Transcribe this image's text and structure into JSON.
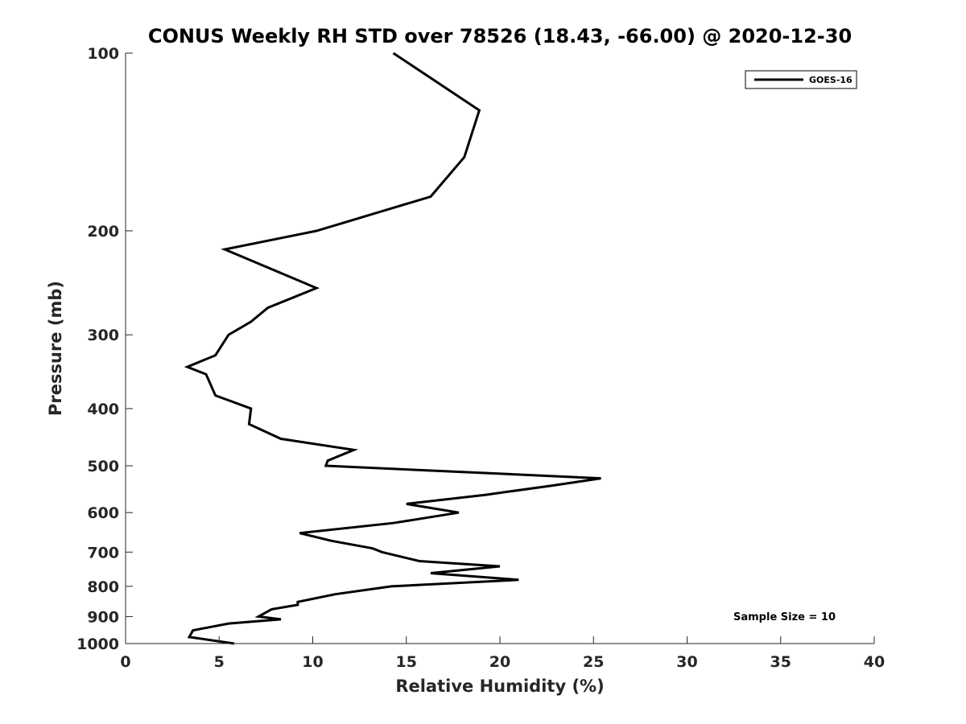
{
  "chart_data": {
    "type": "line",
    "title": "CONUS Weekly RH STD over 78526 (18.43, -66.00) @ 2020-12-30",
    "xlabel": "Relative Humidity (%)",
    "ylabel": "Pressure (mb)",
    "xlim": [
      0,
      40
    ],
    "ylim": [
      100,
      1000
    ],
    "y_scale": "log",
    "y_reversed": true,
    "grid": false,
    "legend_position": "top-right",
    "annotation": "Sample Size = 10",
    "x_ticks": [
      0,
      5,
      10,
      15,
      20,
      25,
      30,
      35,
      40
    ],
    "x_tick_labels": [
      "0",
      "5",
      "10",
      "15",
      "20",
      "25",
      "30",
      "35",
      "40"
    ],
    "y_ticks": [
      100,
      200,
      300,
      400,
      500,
      600,
      700,
      800,
      900,
      1000
    ],
    "y_tick_labels": [
      "100",
      "200",
      "300",
      "400",
      "500",
      "600",
      "700",
      "800",
      "900",
      "1000"
    ],
    "series": [
      {
        "name": "GOES-16",
        "color": "#000000",
        "points": [
          [
            14.3,
            100
          ],
          [
            18.9,
            125
          ],
          [
            18.1,
            150
          ],
          [
            16.3,
            175
          ],
          [
            10.2,
            200
          ],
          [
            5.3,
            215
          ],
          [
            10.2,
            250
          ],
          [
            7.6,
            270
          ],
          [
            6.7,
            285
          ],
          [
            5.5,
            300
          ],
          [
            4.8,
            325
          ],
          [
            3.3,
            340
          ],
          [
            4.3,
            350
          ],
          [
            4.8,
            380
          ],
          [
            6.7,
            400
          ],
          [
            6.6,
            425
          ],
          [
            8.3,
            450
          ],
          [
            12.2,
            470
          ],
          [
            10.8,
            490
          ],
          [
            10.7,
            500
          ],
          [
            25.4,
            525
          ],
          [
            22.8,
            540
          ],
          [
            19.2,
            560
          ],
          [
            15.0,
            580
          ],
          [
            17.8,
            600
          ],
          [
            14.3,
            625
          ],
          [
            9.3,
            650
          ],
          [
            11.0,
            670
          ],
          [
            13.2,
            690
          ],
          [
            13.7,
            700
          ],
          [
            15.7,
            725
          ],
          [
            20.0,
            740
          ],
          [
            16.3,
            760
          ],
          [
            21.0,
            780
          ],
          [
            14.2,
            800
          ],
          [
            11.2,
            825
          ],
          [
            9.2,
            850
          ],
          [
            9.2,
            860
          ],
          [
            7.8,
            875
          ],
          [
            7.1,
            900
          ],
          [
            8.3,
            910
          ],
          [
            5.5,
            925
          ],
          [
            3.6,
            950
          ],
          [
            3.4,
            975
          ],
          [
            5.8,
            1000
          ]
        ]
      }
    ]
  }
}
